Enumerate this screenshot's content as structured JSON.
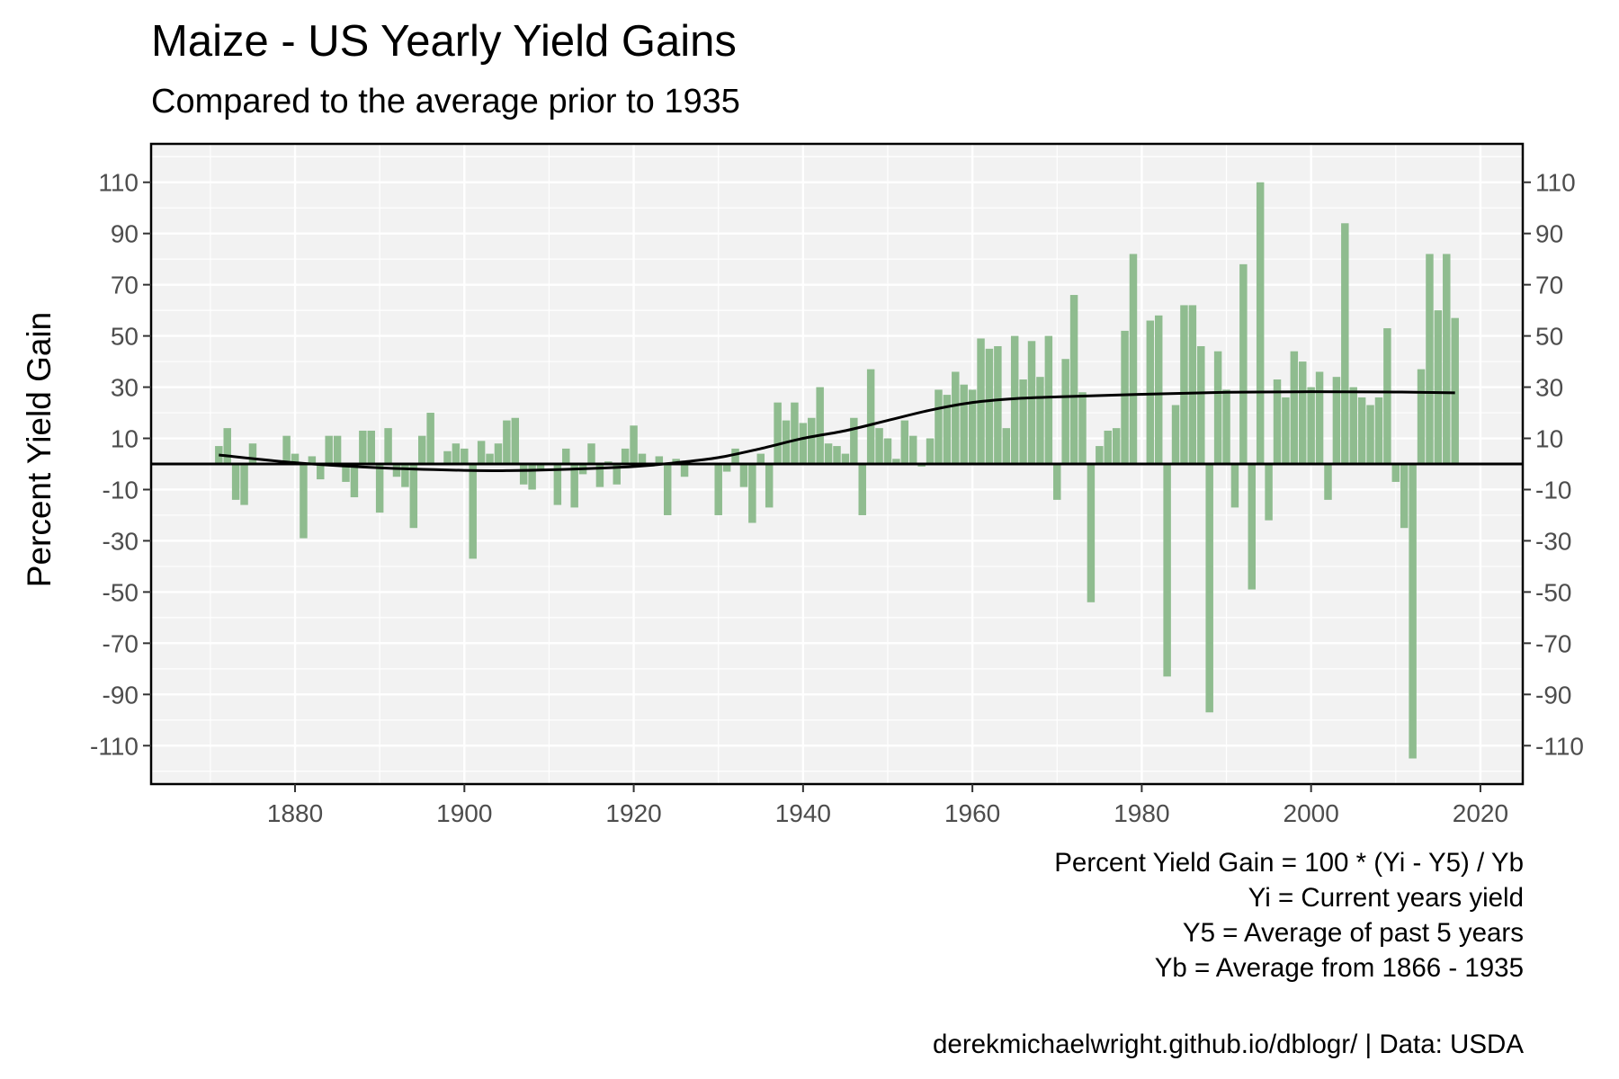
{
  "chart_data": {
    "type": "bar",
    "title": "Maize - US Yearly Yield Gains",
    "subtitle": "Compared to the average prior to 1935",
    "ylabel": "Percent Yield Gain",
    "xlim": [
      1863,
      2025
    ],
    "ylim": [
      -125,
      125
    ],
    "x_ticks": [
      1880,
      1900,
      1920,
      1940,
      1960,
      1980,
      2000,
      2020
    ],
    "y_ticks": [
      110,
      90,
      70,
      50,
      30,
      10,
      -10,
      -30,
      -50,
      -70,
      -90,
      -110
    ],
    "grid": true,
    "bar_color": "#8fbc8f",
    "zero_line": 0,
    "bars": [
      {
        "year": 1871,
        "value": 7
      },
      {
        "year": 1872,
        "value": 14
      },
      {
        "year": 1873,
        "value": -14
      },
      {
        "year": 1874,
        "value": -16
      },
      {
        "year": 1875,
        "value": 8
      },
      {
        "year": 1876,
        "value": 0
      },
      {
        "year": 1877,
        "value": 0
      },
      {
        "year": 1878,
        "value": 0
      },
      {
        "year": 1879,
        "value": 11
      },
      {
        "year": 1880,
        "value": 4
      },
      {
        "year": 1881,
        "value": -29
      },
      {
        "year": 1882,
        "value": 3
      },
      {
        "year": 1883,
        "value": -6
      },
      {
        "year": 1884,
        "value": 11
      },
      {
        "year": 1885,
        "value": 11
      },
      {
        "year": 1886,
        "value": -7
      },
      {
        "year": 1887,
        "value": -13
      },
      {
        "year": 1888,
        "value": 13
      },
      {
        "year": 1889,
        "value": 13
      },
      {
        "year": 1890,
        "value": -19
      },
      {
        "year": 1891,
        "value": 14
      },
      {
        "year": 1892,
        "value": -5
      },
      {
        "year": 1893,
        "value": -9
      },
      {
        "year": 1894,
        "value": -25
      },
      {
        "year": 1895,
        "value": 11
      },
      {
        "year": 1896,
        "value": 20
      },
      {
        "year": 1897,
        "value": 0
      },
      {
        "year": 1898,
        "value": 5
      },
      {
        "year": 1899,
        "value": 8
      },
      {
        "year": 1900,
        "value": 6
      },
      {
        "year": 1901,
        "value": -37
      },
      {
        "year": 1902,
        "value": 9
      },
      {
        "year": 1903,
        "value": 4
      },
      {
        "year": 1904,
        "value": 8
      },
      {
        "year": 1905,
        "value": 17
      },
      {
        "year": 1906,
        "value": 18
      },
      {
        "year": 1907,
        "value": -8
      },
      {
        "year": 1908,
        "value": -10
      },
      {
        "year": 1909,
        "value": -2
      },
      {
        "year": 1910,
        "value": 0
      },
      {
        "year": 1911,
        "value": -16
      },
      {
        "year": 1912,
        "value": 6
      },
      {
        "year": 1913,
        "value": -17
      },
      {
        "year": 1914,
        "value": -4
      },
      {
        "year": 1915,
        "value": 8
      },
      {
        "year": 1916,
        "value": -9
      },
      {
        "year": 1917,
        "value": 1
      },
      {
        "year": 1918,
        "value": -8
      },
      {
        "year": 1919,
        "value": 6
      },
      {
        "year": 1920,
        "value": 15
      },
      {
        "year": 1921,
        "value": 4
      },
      {
        "year": 1922,
        "value": -1
      },
      {
        "year": 1923,
        "value": 3
      },
      {
        "year": 1924,
        "value": -20
      },
      {
        "year": 1925,
        "value": 2
      },
      {
        "year": 1926,
        "value": -5
      },
      {
        "year": 1927,
        "value": 0
      },
      {
        "year": 1928,
        "value": 0
      },
      {
        "year": 1929,
        "value": 0
      },
      {
        "year": 1930,
        "value": -20
      },
      {
        "year": 1931,
        "value": -3
      },
      {
        "year": 1932,
        "value": 6
      },
      {
        "year": 1933,
        "value": -9
      },
      {
        "year": 1934,
        "value": -23
      },
      {
        "year": 1935,
        "value": 4
      },
      {
        "year": 1936,
        "value": -17
      },
      {
        "year": 1937,
        "value": 24
      },
      {
        "year": 1938,
        "value": 17
      },
      {
        "year": 1939,
        "value": 24
      },
      {
        "year": 1940,
        "value": 16
      },
      {
        "year": 1941,
        "value": 18
      },
      {
        "year": 1942,
        "value": 30
      },
      {
        "year": 1943,
        "value": 8
      },
      {
        "year": 1944,
        "value": 7
      },
      {
        "year": 1945,
        "value": 4
      },
      {
        "year": 1946,
        "value": 18
      },
      {
        "year": 1947,
        "value": -20
      },
      {
        "year": 1948,
        "value": 37
      },
      {
        "year": 1949,
        "value": 14
      },
      {
        "year": 1950,
        "value": 10
      },
      {
        "year": 1951,
        "value": 2
      },
      {
        "year": 1952,
        "value": 17
      },
      {
        "year": 1953,
        "value": 11
      },
      {
        "year": 1954,
        "value": -1
      },
      {
        "year": 1955,
        "value": 10
      },
      {
        "year": 1956,
        "value": 29
      },
      {
        "year": 1957,
        "value": 27
      },
      {
        "year": 1958,
        "value": 36
      },
      {
        "year": 1959,
        "value": 31
      },
      {
        "year": 1960,
        "value": 29
      },
      {
        "year": 1961,
        "value": 49
      },
      {
        "year": 1962,
        "value": 45
      },
      {
        "year": 1963,
        "value": 46
      },
      {
        "year": 1964,
        "value": 14
      },
      {
        "year": 1965,
        "value": 50
      },
      {
        "year": 1966,
        "value": 33
      },
      {
        "year": 1967,
        "value": 48
      },
      {
        "year": 1968,
        "value": 34
      },
      {
        "year": 1969,
        "value": 50
      },
      {
        "year": 1970,
        "value": -14
      },
      {
        "year": 1971,
        "value": 41
      },
      {
        "year": 1972,
        "value": 66
      },
      {
        "year": 1973,
        "value": 28
      },
      {
        "year": 1974,
        "value": -54
      },
      {
        "year": 1975,
        "value": 7
      },
      {
        "year": 1976,
        "value": 13
      },
      {
        "year": 1977,
        "value": 14
      },
      {
        "year": 1978,
        "value": 52
      },
      {
        "year": 1979,
        "value": 82
      },
      {
        "year": 1980,
        "value": 0
      },
      {
        "year": 1981,
        "value": 56
      },
      {
        "year": 1982,
        "value": 58
      },
      {
        "year": 1983,
        "value": -83
      },
      {
        "year": 1984,
        "value": 23
      },
      {
        "year": 1985,
        "value": 62
      },
      {
        "year": 1986,
        "value": 62
      },
      {
        "year": 1987,
        "value": 46
      },
      {
        "year": 1988,
        "value": -97
      },
      {
        "year": 1989,
        "value": 44
      },
      {
        "year": 1990,
        "value": 29
      },
      {
        "year": 1991,
        "value": -17
      },
      {
        "year": 1992,
        "value": 78
      },
      {
        "year": 1993,
        "value": -49
      },
      {
        "year": 1994,
        "value": 110
      },
      {
        "year": 1995,
        "value": -22
      },
      {
        "year": 1996,
        "value": 33
      },
      {
        "year": 1997,
        "value": 26
      },
      {
        "year": 1998,
        "value": 44
      },
      {
        "year": 1999,
        "value": 40
      },
      {
        "year": 2000,
        "value": 30
      },
      {
        "year": 2001,
        "value": 36
      },
      {
        "year": 2002,
        "value": -14
      },
      {
        "year": 2003,
        "value": 34
      },
      {
        "year": 2004,
        "value": 94
      },
      {
        "year": 2005,
        "value": 30
      },
      {
        "year": 2006,
        "value": 26
      },
      {
        "year": 2007,
        "value": 23
      },
      {
        "year": 2008,
        "value": 26
      },
      {
        "year": 2009,
        "value": 53
      },
      {
        "year": 2010,
        "value": -7
      },
      {
        "year": 2011,
        "value": -25
      },
      {
        "year": 2012,
        "value": -115
      },
      {
        "year": 2013,
        "value": 37
      },
      {
        "year": 2014,
        "value": 82
      },
      {
        "year": 2015,
        "value": 60
      },
      {
        "year": 2016,
        "value": 82
      },
      {
        "year": 2017,
        "value": 57
      }
    ],
    "trend_line": [
      {
        "year": 1871,
        "value": 3.5
      },
      {
        "year": 1880,
        "value": 0.5
      },
      {
        "year": 1890,
        "value": -1.5
      },
      {
        "year": 1900,
        "value": -2.5
      },
      {
        "year": 1905,
        "value": -2.6
      },
      {
        "year": 1910,
        "value": -2.3
      },
      {
        "year": 1920,
        "value": -1
      },
      {
        "year": 1925,
        "value": 0.5
      },
      {
        "year": 1930,
        "value": 2.5
      },
      {
        "year": 1935,
        "value": 6
      },
      {
        "year": 1940,
        "value": 10
      },
      {
        "year": 1945,
        "value": 13
      },
      {
        "year": 1950,
        "value": 17
      },
      {
        "year": 1955,
        "value": 21
      },
      {
        "year": 1960,
        "value": 24
      },
      {
        "year": 1965,
        "value": 25.5
      },
      {
        "year": 1970,
        "value": 26.2
      },
      {
        "year": 1980,
        "value": 27.2
      },
      {
        "year": 1990,
        "value": 28
      },
      {
        "year": 2000,
        "value": 28.2
      },
      {
        "year": 2010,
        "value": 28.1
      },
      {
        "year": 2017,
        "value": 27.8
      }
    ]
  },
  "caption": {
    "lines": [
      "Percent Yield Gain = 100 * (Yi - Y5) / Yb",
      "Yi = Current years yield",
      "Y5 = Average of past 5 years",
      "Yb = Average from 1866 - 1935"
    ],
    "source": "derekmichaelwright.github.io/dblogr/ | Data: USDA"
  }
}
